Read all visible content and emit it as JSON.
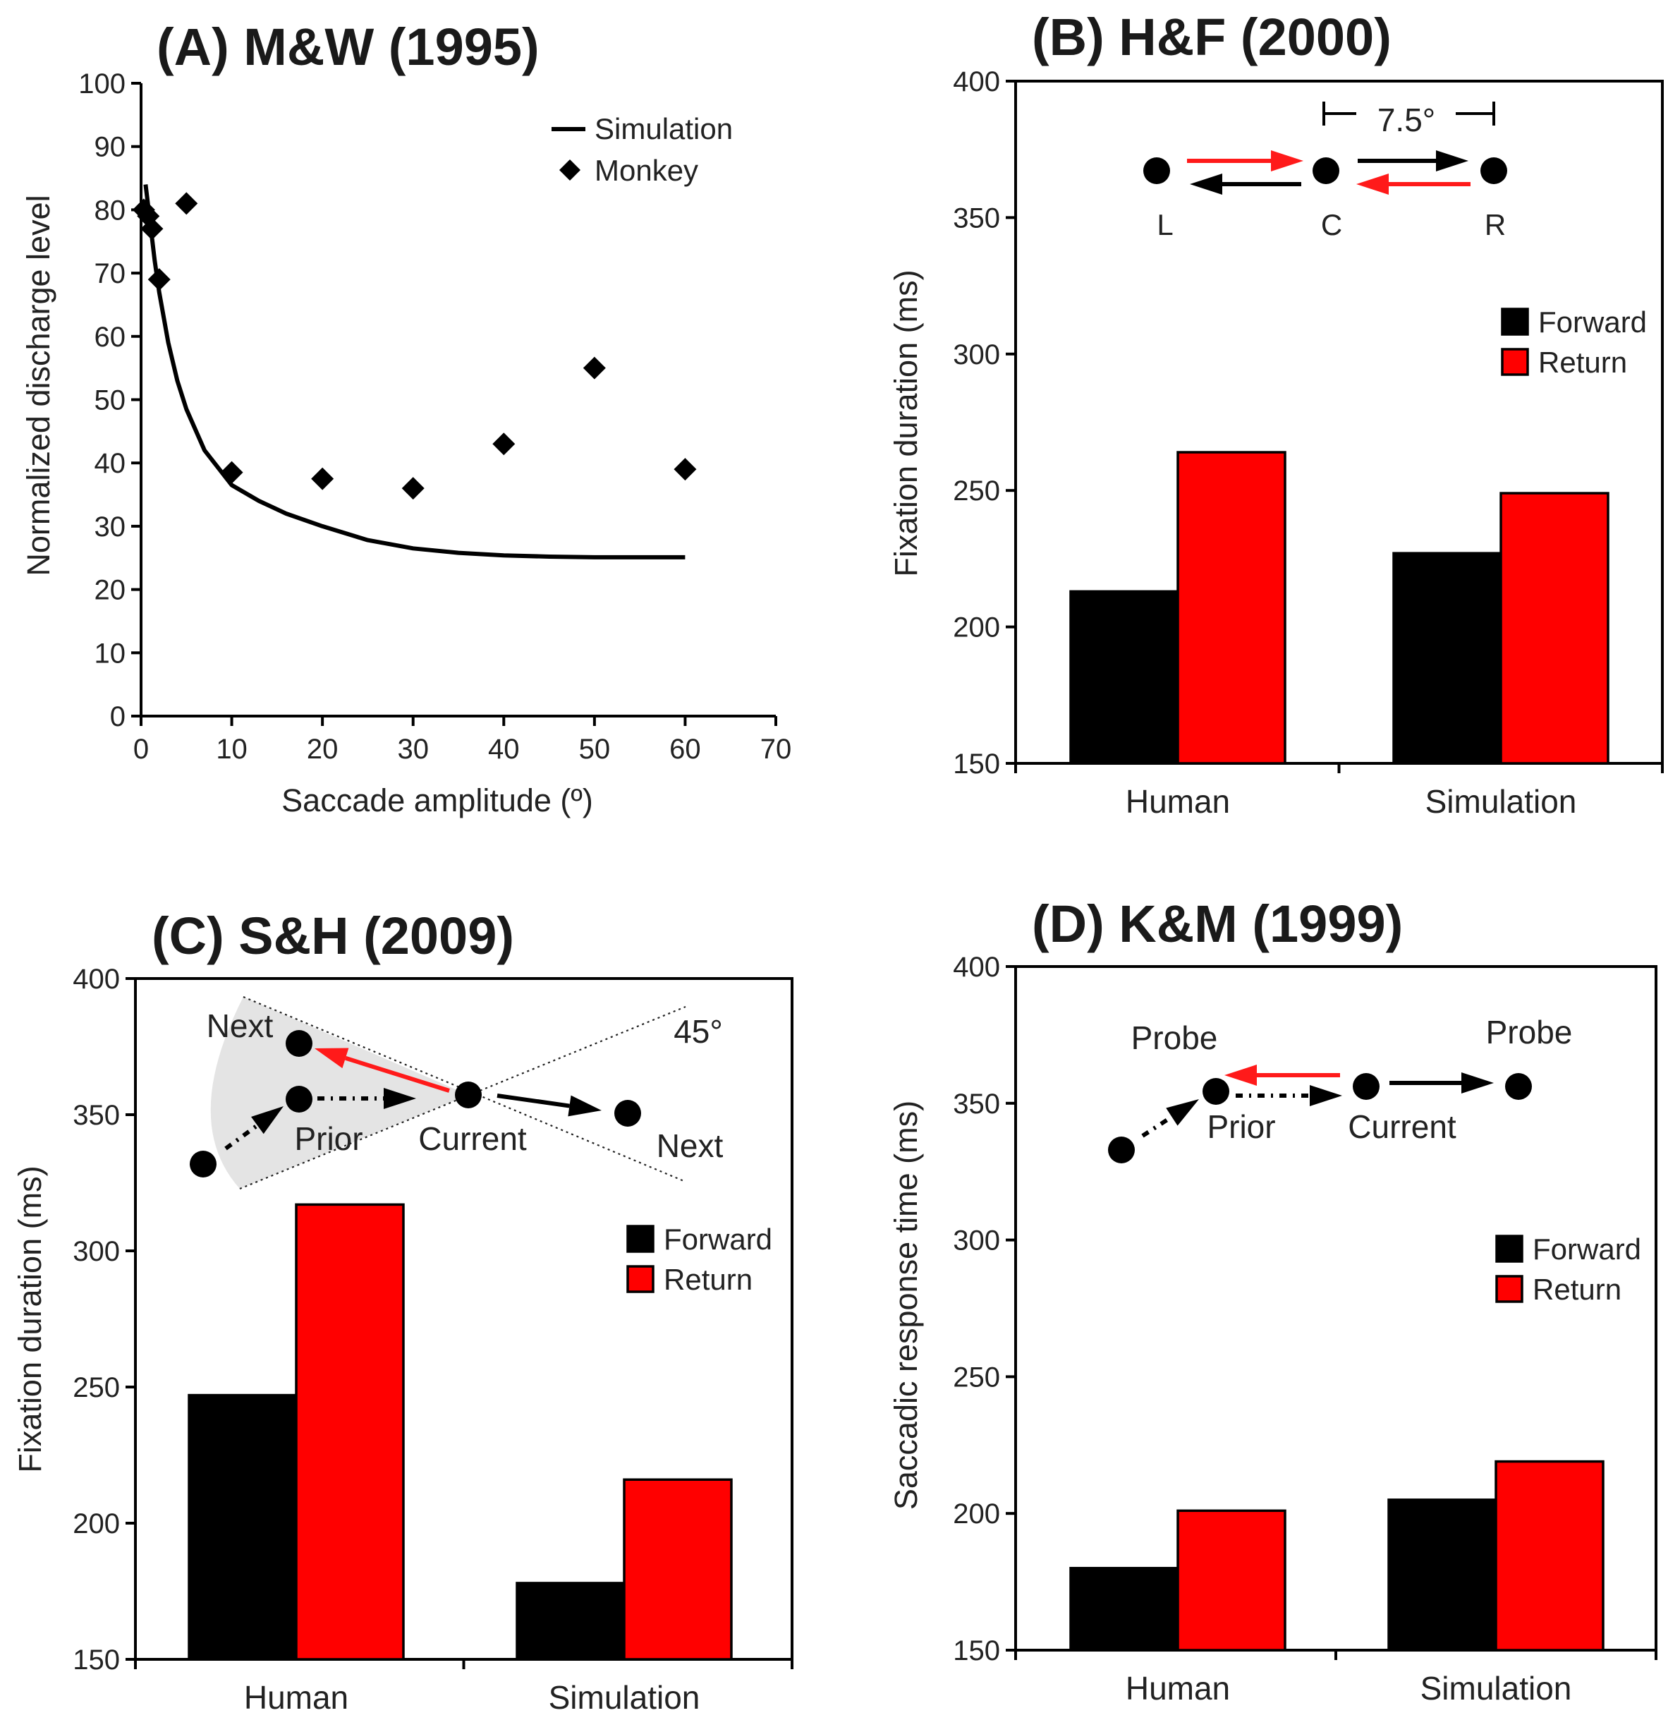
{
  "colors": {
    "forward": "#000000",
    "return": "#ff0000",
    "arrow_red": "#ff1a1a"
  },
  "chart_data": [
    {
      "id": "A",
      "type": "scatter",
      "title": "(A) M&W (1995)",
      "xlabel": "Saccade amplitude (º)",
      "ylabel": "Normalized discharge level",
      "xlim": [
        0,
        70
      ],
      "ylim": [
        0,
        100
      ],
      "xticks": [
        "0",
        "10",
        "20",
        "30",
        "40",
        "50",
        "60",
        "70"
      ],
      "yticks": [
        "0",
        "10",
        "20",
        "30",
        "40",
        "50",
        "60",
        "70",
        "80",
        "90",
        "100"
      ],
      "legend": [
        {
          "label": "Simulation",
          "marker": "line"
        },
        {
          "label": "Monkey",
          "marker": "diamond"
        }
      ],
      "legend_position": "top-right",
      "series": [
        {
          "name": "Simulation",
          "kind": "line",
          "x": [
            0.5,
            1,
            1.5,
            2,
            3,
            4,
            5,
            7,
            10,
            13,
            16,
            20,
            25,
            30,
            35,
            40,
            45,
            50,
            55,
            60
          ],
          "y": [
            84,
            78,
            72,
            67,
            59,
            53,
            48.5,
            42,
            36.5,
            34,
            32,
            30,
            27.8,
            26.5,
            25.8,
            25.4,
            25.2,
            25.1,
            25.1,
            25.1
          ]
        },
        {
          "name": "Monkey",
          "kind": "scatter",
          "x": [
            0.3,
            0.8,
            1.2,
            2,
            5,
            10,
            20,
            30,
            40,
            50,
            60
          ],
          "y": [
            80,
            79,
            77,
            69,
            81,
            38.5,
            37.5,
            36,
            43,
            55,
            39
          ]
        }
      ]
    },
    {
      "id": "B",
      "type": "bar",
      "title": "(B) H&F (2000)",
      "ylabel": "Fixation duration (ms)",
      "ylim": [
        150,
        400
      ],
      "yticks": [
        "150",
        "200",
        "250",
        "300",
        "350",
        "400"
      ],
      "categories": [
        "Human",
        "Simulation"
      ],
      "series": [
        {
          "name": "Forward",
          "values": [
            213,
            227
          ]
        },
        {
          "name": "Return",
          "values": [
            264,
            249
          ]
        }
      ],
      "legend_position": "right",
      "inset": {
        "distance": "7.5°",
        "points": [
          "L",
          "C",
          "R"
        ]
      }
    },
    {
      "id": "C",
      "type": "bar",
      "title": "(C) S&H (2009)",
      "ylabel": "Fixation duration (ms)",
      "ylim": [
        150,
        400
      ],
      "yticks": [
        "150",
        "200",
        "250",
        "300",
        "350",
        "400"
      ],
      "categories": [
        "Human",
        "Simulation"
      ],
      "series": [
        {
          "name": "Forward",
          "values": [
            247,
            178
          ]
        },
        {
          "name": "Return",
          "values": [
            317,
            216
          ]
        }
      ],
      "legend_position": "right",
      "inset": {
        "angle": "45°",
        "next_left": "Next",
        "next_right": "Next",
        "prior": "Prior",
        "current": "Current"
      }
    },
    {
      "id": "D",
      "type": "bar",
      "title": "(D) K&M (1999)",
      "ylabel": "Saccadic response time (ms)",
      "ylim": [
        150,
        400
      ],
      "yticks": [
        "150",
        "200",
        "250",
        "300",
        "350",
        "400"
      ],
      "categories": [
        "Human",
        "Simulation"
      ],
      "series": [
        {
          "name": "Forward",
          "values": [
            180,
            205
          ]
        },
        {
          "name": "Return",
          "values": [
            201,
            219
          ]
        }
      ],
      "legend_position": "right",
      "inset": {
        "probe_left": "Probe",
        "probe_right": "Probe",
        "prior": "Prior",
        "current": "Current"
      }
    }
  ]
}
